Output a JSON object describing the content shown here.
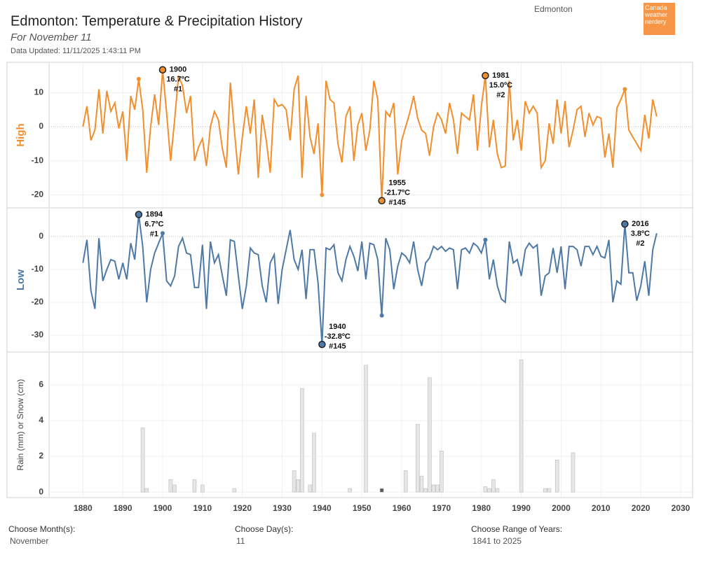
{
  "header": {
    "title": "Edmonton: Temperature & Precipitation History",
    "subtitle": "For November 11",
    "updated": "Data Updated: 11/11/2025 1:43:11 PM",
    "location": "Edmonton",
    "logo": "Canada weather nerdery"
  },
  "chart_data": [
    {
      "type": "line",
      "y_label": "High",
      "color": "#f28e2b",
      "x": [
        1880,
        1881,
        1882,
        1883,
        1884,
        1885,
        1886,
        1887,
        1888,
        1889,
        1890,
        1891,
        1892,
        1893,
        1894,
        1895,
        1896,
        1897,
        1898,
        1899,
        1900,
        1901,
        1902,
        1903,
        1904,
        1905,
        1906,
        1907,
        1908,
        1909,
        1910,
        1911,
        1912,
        1913,
        1914,
        1915,
        1916,
        1917,
        1918,
        1919,
        1920,
        1921,
        1922,
        1923,
        1924,
        1925,
        1926,
        1927,
        1928,
        1929,
        1930,
        1931,
        1932,
        1933,
        1934,
        1935,
        1936,
        1937,
        1938,
        1939,
        1940,
        1941,
        1942,
        1943,
        1944,
        1945,
        1946,
        1947,
        1948,
        1949,
        1950,
        1951,
        1952,
        1953,
        1954,
        1955,
        1956,
        1957,
        1958,
        1959,
        1960,
        1961,
        1962,
        1963,
        1964,
        1965,
        1966,
        1967,
        1968,
        1969,
        1970,
        1971,
        1972,
        1973,
        1974,
        1975,
        1976,
        1977,
        1978,
        1979,
        1980,
        1981,
        1982,
        1983,
        1984,
        1985,
        1986,
        1987,
        1988,
        1989,
        1990,
        1991,
        1992,
        1993,
        1994,
        1995,
        1996,
        1997,
        1998,
        1999,
        2000,
        2001,
        2002,
        2003,
        2004,
        2005,
        2006,
        2007,
        2008,
        2009,
        2010,
        2011,
        2012,
        2013,
        2014,
        2015,
        2016,
        2017,
        2018,
        2019,
        2020,
        2021,
        2022,
        2023,
        2024
      ],
      "values": [
        0,
        6,
        -4,
        -1,
        11,
        -2,
        10.5,
        4.5,
        7,
        -0.5,
        4.5,
        -10,
        9,
        5,
        14,
        5,
        -13.5,
        0,
        9.5,
        0.5,
        16.7,
        4,
        -10,
        2,
        15,
        12,
        4,
        9,
        -10,
        -6,
        -3.5,
        -11.5,
        0,
        4.5,
        2,
        -6.5,
        -12,
        13,
        -1,
        -14,
        -3,
        6,
        -2,
        8,
        -15,
        3.5,
        -4,
        -13.5,
        8,
        6,
        6.5,
        5,
        -4,
        11,
        15,
        -15,
        9,
        -3,
        -8,
        1,
        -20,
        13.5,
        8,
        7,
        -5,
        -10.5,
        3,
        6,
        -10,
        0.5,
        4,
        -7,
        -1,
        13.5,
        8,
        -21.7,
        4.5,
        3,
        7,
        -14,
        -4,
        0,
        4,
        9,
        2.5,
        -1,
        -2,
        -8.5,
        0,
        4,
        2,
        -2,
        7,
        2,
        -8,
        4,
        3,
        2,
        9.5,
        -7,
        6,
        15,
        -6,
        2,
        -8,
        -12,
        -11.5,
        13.5,
        -4,
        2,
        -7,
        7.5,
        4,
        6,
        4,
        -12,
        -10,
        1,
        -5,
        8,
        -2,
        7.5,
        -6,
        -1,
        5,
        6,
        -3,
        4,
        0.5,
        3,
        2.5,
        -9,
        -2,
        -12,
        5.5,
        8,
        11,
        -1,
        -3,
        -5,
        -7,
        3.5,
        -3.5,
        8,
        3
      ],
      "ylim": [
        -23.6,
        18.7
      ],
      "yticks": [
        -20,
        -10,
        0,
        10
      ],
      "xlim": [
        1871.5,
        2033
      ],
      "records": [
        {
          "x": 1900,
          "value_label": "16.7ºC",
          "rank": "#1"
        },
        {
          "x": 1981,
          "value_label": "15.0ºC",
          "rank": "#2"
        },
        {
          "x": 1955,
          "value_label": "-21.7ºC",
          "rank": "#145"
        }
      ],
      "markers": [
        1894,
        1940,
        2016
      ]
    },
    {
      "type": "line",
      "y_label": "Low",
      "color": "#4e79a7",
      "x": [
        1880,
        1881,
        1882,
        1883,
        1884,
        1885,
        1886,
        1887,
        1888,
        1889,
        1890,
        1891,
        1892,
        1893,
        1894,
        1895,
        1896,
        1897,
        1898,
        1899,
        1900,
        1901,
        1902,
        1903,
        1904,
        1905,
        1906,
        1907,
        1908,
        1909,
        1910,
        1911,
        1912,
        1913,
        1914,
        1915,
        1916,
        1917,
        1918,
        1919,
        1920,
        1921,
        1922,
        1923,
        1924,
        1925,
        1926,
        1927,
        1928,
        1929,
        1930,
        1931,
        1932,
        1933,
        1934,
        1935,
        1936,
        1937,
        1938,
        1939,
        1940,
        1941,
        1942,
        1943,
        1944,
        1945,
        1946,
        1947,
        1948,
        1949,
        1950,
        1951,
        1952,
        1953,
        1954,
        1955,
        1956,
        1957,
        1958,
        1959,
        1960,
        1961,
        1962,
        1963,
        1964,
        1965,
        1966,
        1967,
        1968,
        1969,
        1970,
        1971,
        1972,
        1973,
        1974,
        1975,
        1976,
        1977,
        1978,
        1979,
        1980,
        1981,
        1982,
        1983,
        1984,
        1985,
        1986,
        1987,
        1988,
        1989,
        1990,
        1991,
        1992,
        1993,
        1994,
        1995,
        1996,
        1997,
        1998,
        1999,
        2000,
        2001,
        2002,
        2003,
        2004,
        2005,
        2006,
        2007,
        2008,
        2009,
        2010,
        2011,
        2012,
        2013,
        2014,
        2015,
        2016,
        2017,
        2018,
        2019,
        2020,
        2021,
        2022,
        2023,
        2024
      ],
      "values": [
        -8,
        -1,
        -16.5,
        -22,
        -0.5,
        -13.5,
        -10,
        -7,
        -7.5,
        -13,
        -8,
        -13,
        -2,
        -7,
        6.7,
        -3,
        -20,
        -10,
        -5,
        -2,
        1,
        -13.5,
        -15,
        -12,
        -3,
        -0.5,
        -5,
        -5.5,
        -15.5,
        -15.5,
        -2.5,
        -22,
        -1.5,
        -8,
        -5.5,
        -12,
        -18,
        -1,
        -1.5,
        -12,
        -22,
        -15,
        -3.5,
        -5,
        -5.5,
        -15,
        -20,
        -8,
        -5.5,
        -20.5,
        -10,
        -4,
        2,
        -7,
        -10,
        -4,
        -19,
        -4,
        -4,
        -14,
        -32.8,
        -3.5,
        -4,
        -2.5,
        -11,
        -13.5,
        -7,
        -3,
        -6,
        -10.5,
        -1.5,
        -13,
        -2,
        -2.5,
        -7,
        -24,
        -0.5,
        -4,
        -16,
        -9,
        -5,
        -6,
        -8,
        -1.5,
        -10,
        -15,
        -8,
        -6.5,
        -3,
        -4,
        -3,
        -4.5,
        -3.5,
        -4,
        -16,
        -4,
        -3.5,
        -5,
        -2,
        -3,
        -5,
        -1,
        -13,
        -7,
        -15,
        -19,
        -20,
        -1.5,
        -8,
        -7,
        -12,
        -4,
        -2,
        -3.5,
        -2.5,
        -18,
        -12,
        -11,
        -3.5,
        -11,
        -3,
        -16,
        -3,
        -3,
        -4,
        -9,
        -3,
        -3,
        -5.5,
        -3,
        -6,
        -6.5,
        -1,
        -20,
        -13.5,
        -14.5,
        3.8,
        -11,
        -11,
        -19.5,
        -15,
        -7.5,
        -18,
        -4,
        1
      ],
      "ylim": [
        -34.9,
        8.5
      ],
      "yticks": [
        -30,
        -20,
        -10,
        0
      ],
      "xlim": [
        1871.5,
        2033
      ],
      "records": [
        {
          "x": 1894,
          "value_label": "6.7ºC",
          "rank": "#1"
        },
        {
          "x": 2016,
          "value_label": "3.8ºC",
          "rank": "#2"
        },
        {
          "x": 1940,
          "value_label": "-32.8ºC",
          "rank": "#145"
        }
      ],
      "markers": [
        1900,
        1955,
        1981
      ]
    },
    {
      "type": "bar",
      "y_label": "Rain (mm) or Snow (cm)",
      "color": "#e6e6e6",
      "highlight": {
        "x": 1955,
        "color": "#555555"
      },
      "x": [
        1895,
        1896,
        1902,
        1903,
        1908,
        1910,
        1918,
        1933,
        1934,
        1935,
        1937,
        1938,
        1947,
        1951,
        1955,
        1961,
        1964,
        1965,
        1966,
        1967,
        1968,
        1969,
        1970,
        1981,
        1982,
        1983,
        1984,
        1990,
        1996,
        1997,
        1999,
        2003
      ],
      "values": [
        3.6,
        0.2,
        0.7,
        0.4,
        0.7,
        0.4,
        0.2,
        1.2,
        0.7,
        5.8,
        0.4,
        3.3,
        0.2,
        7.1,
        0.2,
        1.2,
        3.8,
        0.9,
        0.2,
        6.4,
        0.4,
        0.4,
        2.3,
        0.3,
        0.2,
        0.7,
        0.2,
        7.4,
        0.2,
        0.2,
        1.8,
        2.2
      ],
      "ylim": [
        -0.27,
        7.8
      ],
      "yticks": [
        0,
        2,
        4,
        6
      ],
      "xlim": [
        1871.5,
        2033
      ],
      "xticks": [
        1880,
        1890,
        1900,
        1910,
        1920,
        1930,
        1940,
        1950,
        1960,
        1970,
        1980,
        1990,
        2000,
        2010,
        2020,
        2030
      ]
    }
  ],
  "filters": [
    {
      "label": "Choose Month(s):",
      "value": "November"
    },
    {
      "label": "Choose Day(s):",
      "value": "11"
    },
    {
      "label": "Choose Range of Years:",
      "value": "1841 to 2025"
    }
  ]
}
